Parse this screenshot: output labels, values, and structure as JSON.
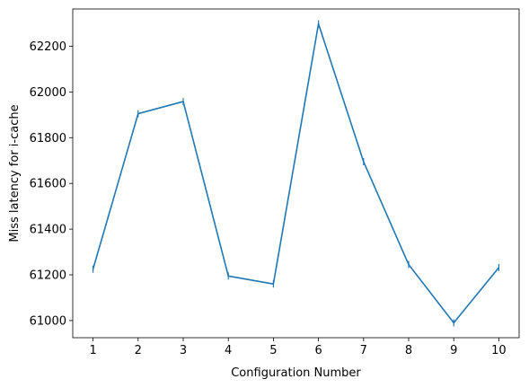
{
  "chart_data": {
    "type": "line",
    "title": "",
    "xlabel": "Configuration Number",
    "ylabel": "Miss latency for i-cache",
    "x": [
      1,
      2,
      3,
      4,
      5,
      6,
      7,
      8,
      9,
      10
    ],
    "series": [
      {
        "values": [
          61225,
          61905,
          61958,
          61195,
          61160,
          62298,
          61695,
          61245,
          60990,
          61232
        ],
        "color": "#1f77b4"
      }
    ],
    "xticks": [
      1,
      2,
      3,
      4,
      5,
      6,
      7,
      8,
      9,
      10
    ],
    "xtick_labels": [
      "1",
      "2",
      "3",
      "4",
      "5",
      "6",
      "7",
      "8",
      "9",
      "10"
    ],
    "yticks": [
      61000,
      61200,
      61400,
      61600,
      61800,
      62000,
      62200
    ],
    "ytick_labels": [
      "61000",
      "61200",
      "61400",
      "61600",
      "61800",
      "62000",
      "62200"
    ],
    "xlim": [
      0.55,
      10.45
    ],
    "ylim": [
      60925,
      62363
    ],
    "grid": false,
    "legend": "none"
  }
}
